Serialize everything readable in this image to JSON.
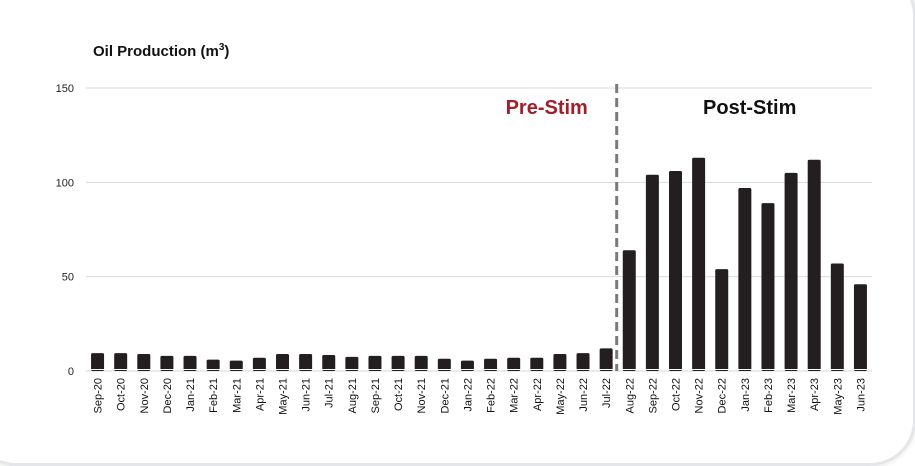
{
  "chart_data": {
    "type": "bar",
    "title": "Oil Production (m",
    "title_superscript": "3",
    "title_suffix": ")",
    "xlabel": "",
    "ylabel": "",
    "ylim": [
      0,
      150
    ],
    "yticks": [
      0,
      50,
      100,
      150
    ],
    "grid": true,
    "categories": [
      "Sep-20",
      "Oct-20",
      "Nov-20",
      "Dec-20",
      "Jan-21",
      "Feb-21",
      "Mar-21",
      "Apr-21",
      "May-21",
      "Jun-21",
      "Jul-21",
      "Aug-21",
      "Sep-21",
      "Oct-21",
      "Nov-21",
      "Dec-21",
      "Jan-22",
      "Feb-22",
      "Mar-22",
      "Apr-22",
      "May-22",
      "Jun-22",
      "Jul-22",
      "Aug-22",
      "Sep-22",
      "Oct-22",
      "Nov-22",
      "Dec-22",
      "Jan-23",
      "Feb-23",
      "Mar-23",
      "Apr-23",
      "May-23",
      "Jun-23"
    ],
    "values": [
      9.5,
      9.5,
      9,
      8,
      8,
      6,
      5.5,
      7,
      9,
      9,
      8.5,
      7.5,
      8,
      8,
      8,
      6.5,
      5.5,
      6.5,
      7,
      7,
      9,
      9.5,
      12,
      64,
      104,
      106,
      113,
      54,
      97,
      89,
      105,
      112,
      57,
      46
    ],
    "annotations": [
      {
        "text": "Pre-Stim",
        "color": "#a11e2c"
      },
      {
        "text": "Post-Stim",
        "color": "#111111"
      }
    ],
    "divider_after": "Jul-22",
    "bar_color": "#231f20"
  }
}
